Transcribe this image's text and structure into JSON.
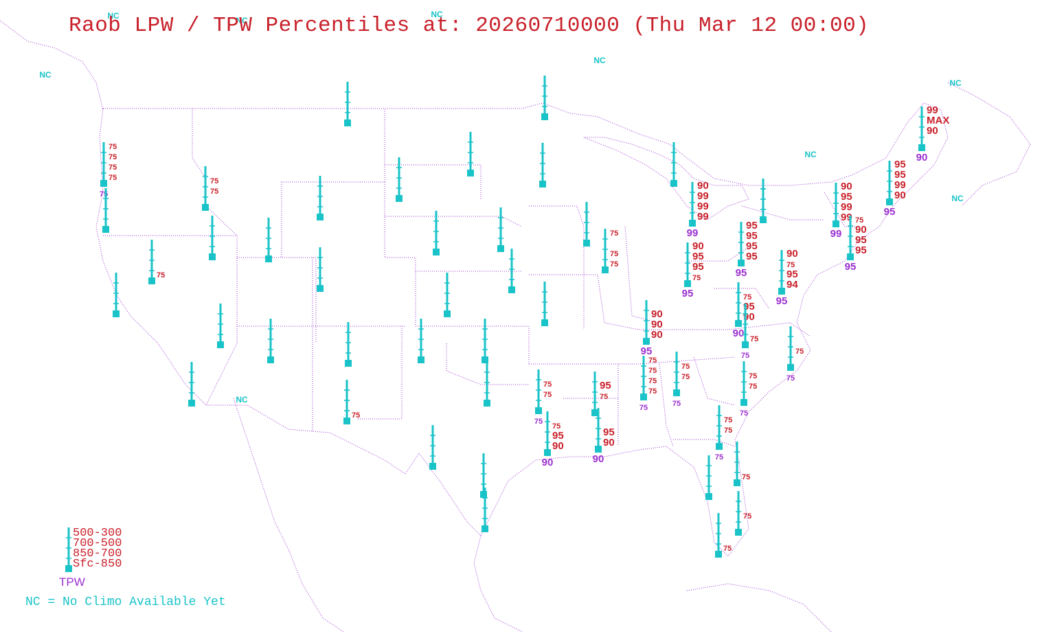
{
  "title": "Raob LPW / TPW Percentiles at: 20260710000 (Thu Mar 12 00:00)",
  "colors": {
    "bar": "#19c3c8",
    "lpw_label": "#c8202a",
    "tpw_label": "#9b30d0",
    "nc_label": "#19c3c8",
    "border": "#9b30d0"
  },
  "legend": {
    "layers": [
      "500-300",
      "700-500",
      "850-700",
      "Sfc-850"
    ],
    "tpw_label": "TPW",
    "nc_note": "NC = No Climo Available Yet"
  },
  "nc_label": "NC",
  "stations": [
    {
      "id": "s1",
      "lpw": [
        "75",
        "75",
        "75",
        "75"
      ],
      "tpw": "75"
    },
    {
      "id": "s2",
      "lpw": [],
      "tpw": ""
    },
    {
      "id": "s3",
      "lpw": [],
      "tpw": ""
    },
    {
      "id": "s4",
      "lpw": [
        "",
        "75",
        "75",
        ""
      ],
      "tpw": ""
    },
    {
      "id": "s5",
      "lpw": [],
      "tpw": ""
    },
    {
      "id": "s6",
      "lpw": [
        "",
        "",
        "",
        "75"
      ],
      "tpw": ""
    },
    {
      "id": "s7",
      "lpw": [],
      "tpw": ""
    },
    {
      "id": "s8",
      "lpw": [],
      "tpw": ""
    },
    {
      "id": "s9",
      "lpw": [],
      "tpw": ""
    },
    {
      "id": "s10",
      "lpw": [],
      "tpw": ""
    },
    {
      "id": "s11",
      "lpw": [],
      "tpw": ""
    },
    {
      "id": "s12",
      "lpw": [],
      "tpw": ""
    },
    {
      "id": "s13",
      "lpw": [],
      "tpw": ""
    },
    {
      "id": "s14",
      "lpw": [],
      "tpw": ""
    },
    {
      "id": "s15",
      "lpw": [],
      "tpw": ""
    },
    {
      "id": "s16",
      "lpw": [
        "",
        "",
        "",
        "75"
      ],
      "tpw": ""
    },
    {
      "id": "s17",
      "lpw": [],
      "tpw": ""
    },
    {
      "id": "s18",
      "lpw": [],
      "tpw": ""
    },
    {
      "id": "s19",
      "lpw": [],
      "tpw": ""
    },
    {
      "id": "s20",
      "lpw": [],
      "tpw": ""
    },
    {
      "id": "s21",
      "lpw": [],
      "tpw": ""
    },
    {
      "id": "s22",
      "lpw": [],
      "tpw": ""
    },
    {
      "id": "s23",
      "lpw": [],
      "tpw": ""
    },
    {
      "id": "s24",
      "lpw": [],
      "tpw": ""
    },
    {
      "id": "s25",
      "lpw": [],
      "tpw": ""
    },
    {
      "id": "s26",
      "lpw": [],
      "tpw": ""
    },
    {
      "id": "s27",
      "lpw": [],
      "tpw": ""
    },
    {
      "id": "s28",
      "lpw": [],
      "tpw": ""
    },
    {
      "id": "s29",
      "lpw": [
        "",
        "75",
        "75",
        ""
      ],
      "tpw": "75"
    },
    {
      "id": "s30",
      "lpw": [
        "",
        "75",
        "95",
        "90"
      ],
      "tpw": "90"
    },
    {
      "id": "s31",
      "lpw": [],
      "tpw": ""
    },
    {
      "id": "s32",
      "lpw": [],
      "tpw": ""
    },
    {
      "id": "s33",
      "lpw": [],
      "tpw": ""
    },
    {
      "id": "s34",
      "lpw": [],
      "tpw": ""
    },
    {
      "id": "s35",
      "lpw": [
        "",
        "95",
        "75",
        ""
      ],
      "tpw": ""
    },
    {
      "id": "s36",
      "lpw": [
        "",
        "",
        "95",
        "90"
      ],
      "tpw": "90"
    },
    {
      "id": "s37",
      "lpw": [
        "",
        "90",
        "90",
        "90"
      ],
      "tpw": "95"
    },
    {
      "id": "s38",
      "lpw": [
        "75",
        "75",
        "75",
        "75"
      ],
      "tpw": "75"
    },
    {
      "id": "s39",
      "lpw": [
        "75",
        "",
        "75",
        "75"
      ],
      "tpw": ""
    },
    {
      "id": "s40",
      "lpw": [],
      "tpw": ""
    },
    {
      "id": "s41",
      "lpw": [
        "",
        "75",
        "75",
        ""
      ],
      "tpw": "75"
    },
    {
      "id": "s42",
      "lpw": [
        "90",
        "95",
        "95",
        "75"
      ],
      "tpw": "95"
    },
    {
      "id": "s43",
      "lpw": [
        "90",
        "99",
        "99",
        "99"
      ],
      "tpw": "99"
    },
    {
      "id": "s44",
      "lpw": [
        "95",
        "95",
        "95",
        "95"
      ],
      "tpw": "95"
    },
    {
      "id": "s45",
      "lpw": [
        "",
        "75",
        "95",
        "90"
      ],
      "tpw": "90"
    },
    {
      "id": "s46",
      "lpw": [
        "",
        "",
        "",
        "75"
      ],
      "tpw": "75"
    },
    {
      "id": "s47",
      "lpw": [
        "90",
        "75",
        "95",
        "94"
      ],
      "tpw": "95"
    },
    {
      "id": "s48",
      "lpw": [
        "",
        "75",
        "75",
        ""
      ],
      "tpw": "75"
    },
    {
      "id": "s49",
      "lpw": [
        "",
        "75",
        "75",
        ""
      ],
      "tpw": "75"
    },
    {
      "id": "s50",
      "lpw": [
        "90",
        "95",
        "99",
        "99"
      ],
      "tpw": "99"
    },
    {
      "id": "s51",
      "lpw": [
        "75",
        "90",
        "95",
        "95"
      ],
      "tpw": "95"
    },
    {
      "id": "s52",
      "lpw": [
        "95",
        "95",
        "99",
        "90"
      ],
      "tpw": "95"
    },
    {
      "id": "s53",
      "lpw": [
        "99",
        "MAX",
        "90",
        ""
      ],
      "tpw": "90"
    },
    {
      "id": "s54",
      "lpw": [
        "",
        "",
        "75",
        ""
      ],
      "tpw": "75"
    },
    {
      "id": "s55",
      "lpw": [],
      "tpw": ""
    },
    {
      "id": "s56",
      "lpw": [
        "",
        "",
        "",
        "75"
      ],
      "tpw": ""
    },
    {
      "id": "s57",
      "lpw": [
        "",
        "",
        "75",
        ""
      ],
      "tpw": ""
    },
    {
      "id": "s58",
      "lpw": [
        "",
        "",
        "",
        "75"
      ],
      "tpw": ""
    },
    {
      "id": "s59",
      "lpw": [],
      "tpw": ""
    },
    {
      "id": "s60",
      "lpw": [],
      "tpw": ""
    }
  ],
  "nc_sites": [
    {
      "id": "nc1"
    },
    {
      "id": "nc2"
    },
    {
      "id": "nc3"
    },
    {
      "id": "nc4"
    },
    {
      "id": "nc5"
    },
    {
      "id": "nc6"
    },
    {
      "id": "nc7"
    },
    {
      "id": "nc8"
    },
    {
      "id": "nc9"
    }
  ]
}
